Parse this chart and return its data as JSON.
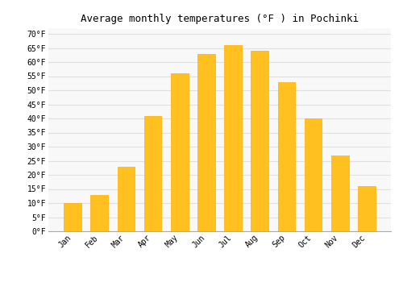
{
  "title": "Average monthly temperatures (°F ) in Pochinki",
  "months": [
    "Jan",
    "Feb",
    "Mar",
    "Apr",
    "May",
    "Jun",
    "Jul",
    "Aug",
    "Sep",
    "Oct",
    "Nov",
    "Dec"
  ],
  "values": [
    10,
    13,
    23,
    41,
    56,
    63,
    66,
    64,
    53,
    40,
    27,
    16
  ],
  "bar_color": "#FFC020",
  "bar_edge_color": "#FFB000",
  "background_color": "#ffffff",
  "plot_bg_color": "#f8f8f8",
  "grid_color": "#e0e0e0",
  "ylim": [
    0,
    72
  ],
  "yticks": [
    0,
    5,
    10,
    15,
    20,
    25,
    30,
    35,
    40,
    45,
    50,
    55,
    60,
    65,
    70
  ],
  "title_fontsize": 9,
  "tick_fontsize": 7,
  "ylabel_suffix": "°F",
  "bar_width": 0.65
}
